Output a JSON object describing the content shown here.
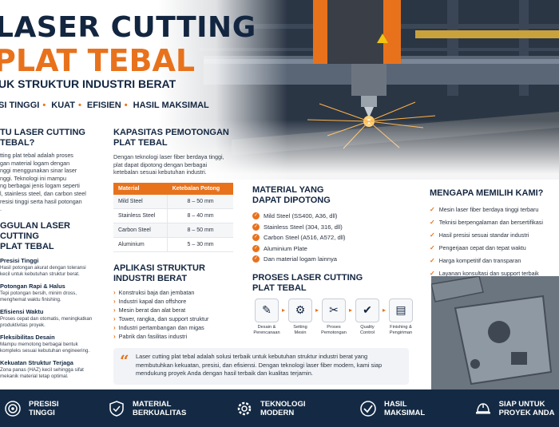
{
  "hero": {
    "title_line1": "LASER CUTTING",
    "title_line2": "PLAT TEBAL",
    "subtitle": "UK STRUKTUR INDUSTRI BERAT",
    "tags": [
      "SI TINGGI",
      "KUAT",
      "EFISIEN",
      "HASIL MAKSIMAL"
    ]
  },
  "intro": {
    "title_line1": "TU LASER CUTTING",
    "title_line2": "TEBAL?",
    "lines": [
      "tting plat tebal adalah proses",
      "gan material logam dengan",
      "nggi menggunakan sinar laser",
      "nggi. Teknologi ini mampu",
      "ng berbagai jenis logam seperti",
      "l, stainless steel, dan carbon steel",
      "resisi tinggi serta hasil potongan",
      "."
    ]
  },
  "benefits": {
    "title_line1": "GGULAN LASER CUTTING",
    "title_line2": "PLAT TEBAL",
    "items": [
      {
        "title": "Presisi Tinggi",
        "desc": [
          "Hasil potongan akurat dengan toleransi",
          "kecil untuk kebutuhan struktur berat."
        ]
      },
      {
        "title": "Potongan Rapi & Halus",
        "desc": [
          "Tepi potongan bersih, minim dross,",
          "menghemat waktu finishing."
        ]
      },
      {
        "title": "Efisiensi Waktu",
        "desc": [
          "Proses cepat dan otomatis, meningkatkan",
          "produktivitas proyek."
        ]
      },
      {
        "title": "Fleksibilitas Desain",
        "desc": [
          "Mampu memotong berbagai bentuk",
          "kompleks sesuai kebutuhan engineering."
        ]
      },
      {
        "title": "Kekuatan Struktur Terjaga",
        "desc": [
          "Zona panas (HAZ) kecil sehingga sifat",
          "mekanik material tetap optimal."
        ]
      }
    ]
  },
  "capacity": {
    "title_line1": "KAPASITAS PEMOTONGAN",
    "title_line2": "PLAT TEBAL",
    "desc": [
      "Dengan teknologi laser fiber berdaya tinggi,",
      "plat dapat dipotong dengan berbagai",
      "ketebalan sesuai kebutuhan industri."
    ],
    "headers": [
      "Material",
      "Ketebalan Potong"
    ],
    "rows": [
      [
        "Mild Steel",
        "8 – 50 mm"
      ],
      [
        "Stainless Steel",
        "8 – 40 mm"
      ],
      [
        "Carbon Steel",
        "8 – 50 mm"
      ],
      [
        "Aluminium",
        "5 – 30 mm"
      ]
    ]
  },
  "applications": {
    "title_line1": "APLIKASI STRUKTUR",
    "title_line2": "INDUSTRI BERAT",
    "items": [
      "Konstruksi baja dan jembatan",
      "Industri kapal dan offshore",
      "Mesin berat dan alat berat",
      "Tower, rangka, dan support struktur",
      "Industri pertambangan dan migas",
      "Pabrik dan fasilitas industri"
    ]
  },
  "materials": {
    "title_line1": "MATERIAL YANG",
    "title_line2": "DAPAT DIPOTONG",
    "items": [
      "Mild Steel (SS400, A36, dll)",
      "Stainless Steel (304, 316, dll)",
      "Carbon Steel (A516, A572, dll)",
      "Aluminium Plate",
      "Dan material logam lainnya"
    ]
  },
  "process": {
    "title_line1": "PROSES LASER CUTTING",
    "title_line2": "PLAT TEBAL",
    "steps": [
      {
        "icon": "design-icon",
        "glyph": "✎",
        "label": [
          "Desain &",
          "Perencanaan"
        ]
      },
      {
        "icon": "machine-setting-icon",
        "glyph": "⚙",
        "label": [
          "Setting",
          "Mesin"
        ]
      },
      {
        "icon": "cutting-icon",
        "glyph": "✂",
        "label": [
          "Proses",
          "Pemotongan"
        ]
      },
      {
        "icon": "quality-control-icon",
        "glyph": "✔",
        "label": [
          "Quality",
          "Control"
        ]
      },
      {
        "icon": "finishing-icon",
        "glyph": "▤",
        "label": [
          "Finishing &",
          "Pengiriman"
        ]
      }
    ]
  },
  "why": {
    "title": "MENGAPA MEMILIH KAMI?",
    "items": [
      "Mesin laser fiber berdaya tinggi terbaru",
      "Teknisi berpengalaman dan bersertifikasi",
      "Hasil presisi sesuai standar industri",
      "Pengerjaan cepat dan tepat waktu",
      "Harga kompetitif dan transparan",
      "Layanan konsultasi dan support terbaik"
    ]
  },
  "quote": {
    "lines": [
      "Laser cutting plat tebal adalah solusi terbaik untuk kebutuhan struktur industri berat yang",
      "membutuhkan kekuatan, presisi, dan efisiensi. Dengan teknologi laser fiber modern, kami siap",
      "mendukung proyek Anda dengan hasil terbaik dan kualitas terjamin."
    ]
  },
  "footer": {
    "items": [
      {
        "icon": "target-icon",
        "label": [
          "PRESISI",
          "TINGGI"
        ]
      },
      {
        "icon": "shield-icon",
        "label": [
          "MATERIAL",
          "BERKUALITAS"
        ]
      },
      {
        "icon": "gear-icon",
        "label": [
          "TEKNOLOGI",
          "MODERN"
        ]
      },
      {
        "icon": "check-circle-icon",
        "label": [
          "HASIL",
          "MAKSIMAL"
        ]
      },
      {
        "icon": "helmet-icon",
        "label": [
          "SIAP UNTUK",
          "PROYEK ANDA"
        ]
      }
    ]
  },
  "colors": {
    "accent": "#e8721c",
    "navy": "#132640",
    "footer": "#142a44"
  }
}
